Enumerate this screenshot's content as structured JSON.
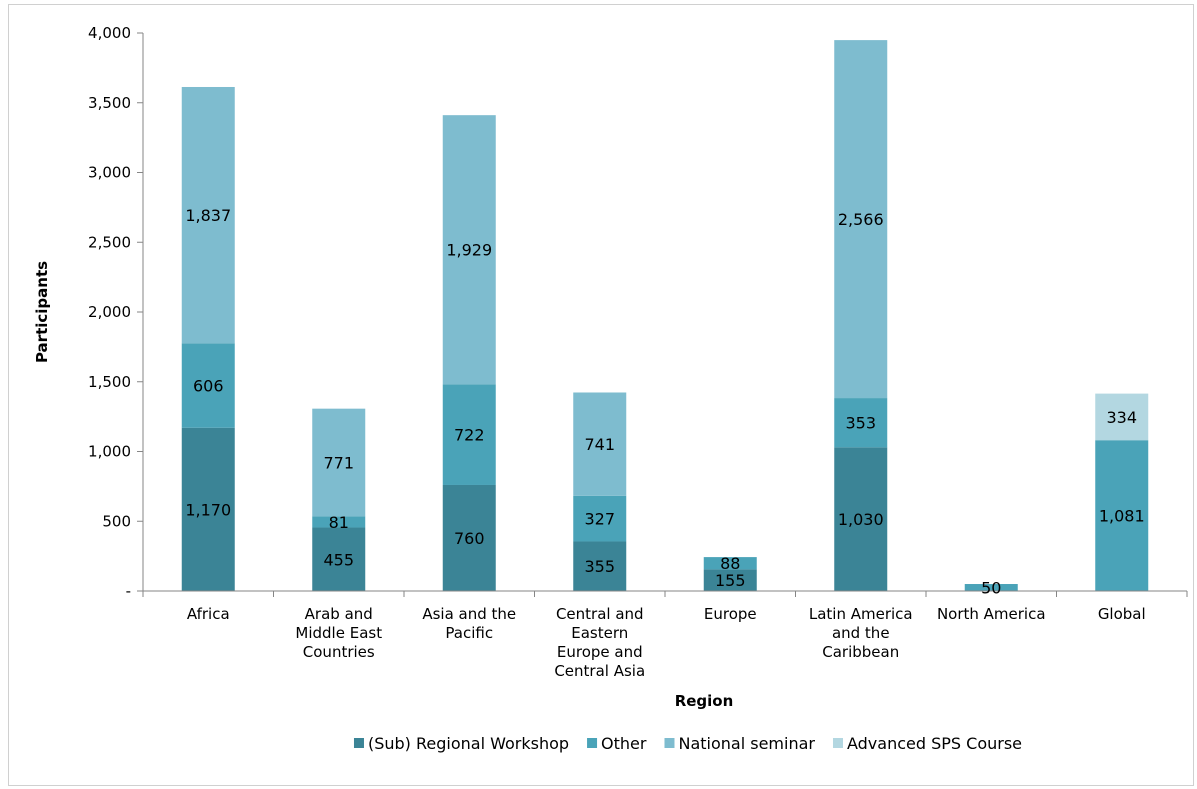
{
  "chart_data": {
    "type": "bar",
    "stacked": true,
    "xlabel": "Region",
    "ylabel": "Participants",
    "ylim": [
      0,
      4000
    ],
    "yticks": [
      {
        "value": 0,
        "label": "-"
      },
      {
        "value": 500,
        "label": "500"
      },
      {
        "value": 1000,
        "label": "1,000"
      },
      {
        "value": 1500,
        "label": "1,500"
      },
      {
        "value": 2000,
        "label": "2,000"
      },
      {
        "value": 2500,
        "label": "2,500"
      },
      {
        "value": 3000,
        "label": "3,000"
      },
      {
        "value": 3500,
        "label": "3,500"
      },
      {
        "value": 4000,
        "label": "4,000"
      }
    ],
    "grid": false,
    "legend_position": "bottom",
    "categories": [
      [
        "Africa"
      ],
      [
        "Arab and",
        "Middle East",
        "Countries"
      ],
      [
        "Asia and the",
        "Pacific"
      ],
      [
        "Central and",
        "Eastern",
        "Europe and",
        "Central Asia"
      ],
      [
        "Europe"
      ],
      [
        "Latin America",
        "and the",
        "Caribbean"
      ],
      [
        "North America"
      ],
      [
        "Global"
      ]
    ],
    "series": [
      {
        "name": "(Sub) Regional Workshop",
        "color": "#3b8496",
        "values": [
          1170,
          455,
          760,
          355,
          155,
          1030,
          0,
          0
        ]
      },
      {
        "name": "Other",
        "color": "#4aa3b8",
        "values": [
          606,
          81,
          722,
          327,
          88,
          353,
          50,
          1081
        ]
      },
      {
        "name": "National seminar",
        "color": "#7ebccf",
        "values": [
          1837,
          771,
          1929,
          741,
          0,
          2566,
          0,
          0
        ]
      },
      {
        "name": "Advanced SPS Course",
        "color": "#b3d7e1",
        "values": [
          0,
          0,
          0,
          0,
          0,
          0,
          0,
          334
        ]
      }
    ],
    "data_labels": [
      [
        "1,170",
        "455",
        "760",
        "355",
        "155",
        "1,030",
        "",
        ""
      ],
      [
        "606",
        "81",
        "722",
        "327",
        "88",
        "353",
        "50",
        "1,081"
      ],
      [
        "1,837",
        "771",
        "1,929",
        "741",
        "",
        "2,566",
        "",
        ""
      ],
      [
        "",
        "",
        "",
        "",
        "",
        "",
        "",
        "334"
      ]
    ]
  }
}
